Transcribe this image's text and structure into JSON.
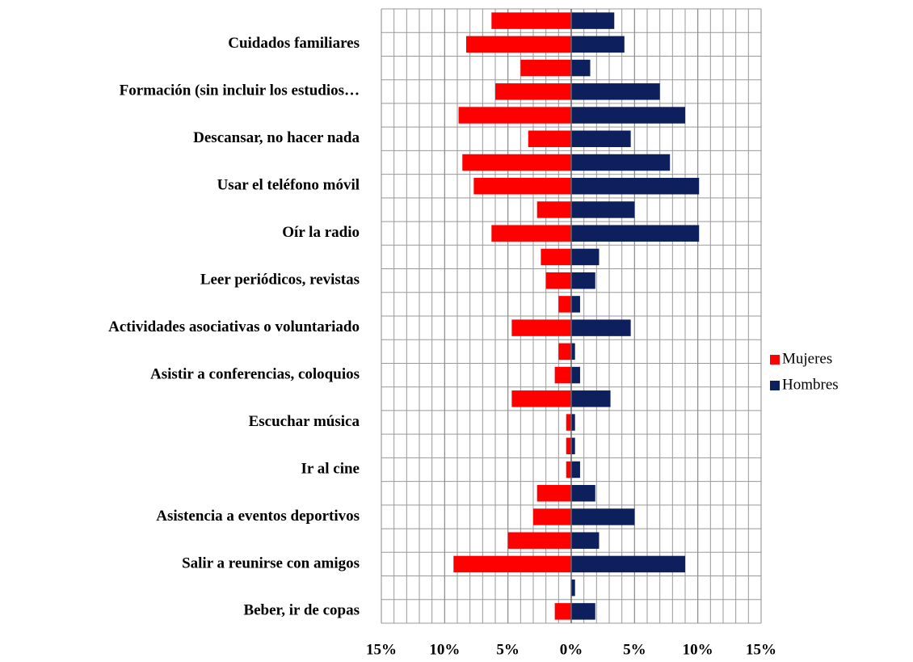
{
  "chart_data": {
    "type": "bar",
    "orientation": "horizontal",
    "stacking": "diverging",
    "categories": [
      null,
      "Cuidados familiares",
      null,
      "Formación (sin incluir los estudios…",
      null,
      "Descansar, no hacer nada",
      null,
      "Usar el teléfono móvil",
      null,
      "Oír la radio",
      null,
      "Leer periódicos, revistas",
      null,
      "Actividades asociativas o voluntariado",
      null,
      "Asistir a conferencias, coloquios",
      null,
      "Escuchar música",
      null,
      "Ir al cine",
      null,
      "Asistencia a eventos deportivos",
      null,
      "Salir a reunirse con amigos",
      null,
      "Beber, ir de copas"
    ],
    "series": [
      {
        "name": "Mujeres",
        "color": "#ff0000",
        "values": [
          -6.3,
          -8.3,
          -4.0,
          -6.0,
          -8.9,
          -3.4,
          -8.6,
          -7.7,
          -2.7,
          -6.3,
          -2.4,
          -2.0,
          -1.0,
          -4.7,
          -1.0,
          -1.3,
          -4.7,
          -0.4,
          -0.4,
          -0.4,
          -2.7,
          -3.0,
          -5.0,
          -9.3,
          0,
          -1.3
        ]
      },
      {
        "name": "Hombres",
        "color": "#0d1f5c",
        "values": [
          3.4,
          4.2,
          1.5,
          7.0,
          9.0,
          4.7,
          7.8,
          10.1,
          5.0,
          10.1,
          2.2,
          1.9,
          0.7,
          4.7,
          0.3,
          0.7,
          3.1,
          0.3,
          0.3,
          0.7,
          1.9,
          5.0,
          2.2,
          9.0,
          0.3,
          1.9
        ]
      }
    ],
    "xlim": [
      -15,
      15
    ],
    "xticks": [
      {
        "value": -15,
        "label": "15%"
      },
      {
        "value": -10,
        "label": "10%"
      },
      {
        "value": -5,
        "label": "5%"
      },
      {
        "value": 0,
        "label": "0%"
      },
      {
        "value": 5,
        "label": "5%"
      },
      {
        "value": 10,
        "label": "10%"
      },
      {
        "value": 15,
        "label": "15%"
      }
    ],
    "grid": true,
    "minor_grid_step": 1,
    "legend": "right"
  }
}
